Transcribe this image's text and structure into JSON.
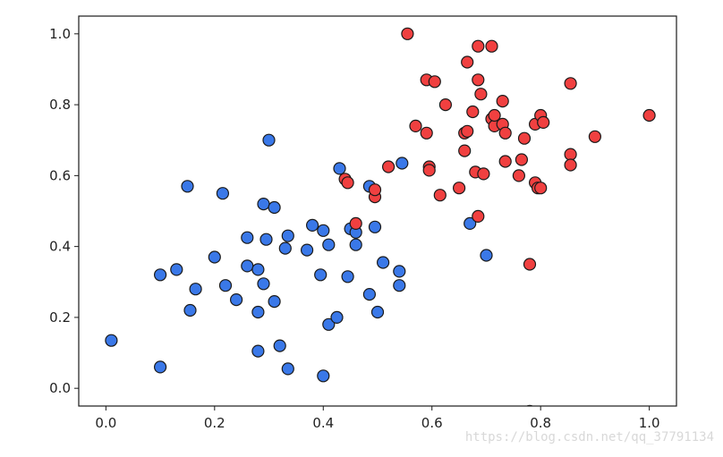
{
  "watermark": "https://blog.csdn.net/qq_37791134",
  "chart_data": {
    "type": "scatter",
    "title": "",
    "xlabel": "",
    "ylabel": "",
    "xlim": [
      -0.05,
      1.05
    ],
    "ylim": [
      -0.05,
      1.05
    ],
    "x_ticks": [
      "0.0",
      "0.2",
      "0.4",
      "0.6",
      "0.8",
      "1.0"
    ],
    "y_ticks": [
      "0.0",
      "0.2",
      "0.4",
      "0.6",
      "0.8",
      "1.0"
    ],
    "grid": false,
    "legend": "none",
    "marker_edge_color": "#1a1a1a",
    "series": [
      {
        "color": "#3a78e8",
        "points": [
          [
            0.01,
            0.135
          ],
          [
            0.1,
            0.06
          ],
          [
            0.1,
            0.32
          ],
          [
            0.13,
            0.335
          ],
          [
            0.15,
            0.57
          ],
          [
            0.155,
            0.22
          ],
          [
            0.165,
            0.28
          ],
          [
            0.2,
            0.37
          ],
          [
            0.215,
            0.55
          ],
          [
            0.22,
            0.29
          ],
          [
            0.24,
            0.25
          ],
          [
            0.26,
            0.425
          ],
          [
            0.26,
            0.345
          ],
          [
            0.28,
            0.335
          ],
          [
            0.28,
            0.215
          ],
          [
            0.28,
            0.105
          ],
          [
            0.29,
            0.52
          ],
          [
            0.29,
            0.295
          ],
          [
            0.295,
            0.42
          ],
          [
            0.3,
            0.7
          ],
          [
            0.31,
            0.245
          ],
          [
            0.31,
            0.51
          ],
          [
            0.32,
            0.12
          ],
          [
            0.33,
            0.395
          ],
          [
            0.335,
            0.43
          ],
          [
            0.335,
            0.055
          ],
          [
            0.37,
            0.39
          ],
          [
            0.38,
            0.46
          ],
          [
            0.395,
            0.32
          ],
          [
            0.4,
            0.445
          ],
          [
            0.4,
            0.035
          ],
          [
            0.41,
            0.18
          ],
          [
            0.41,
            0.405
          ],
          [
            0.425,
            0.2
          ],
          [
            0.43,
            0.62
          ],
          [
            0.445,
            0.315
          ],
          [
            0.45,
            0.45
          ],
          [
            0.46,
            0.44
          ],
          [
            0.46,
            0.405
          ],
          [
            0.485,
            0.57
          ],
          [
            0.485,
            0.265
          ],
          [
            0.495,
            0.455
          ],
          [
            0.5,
            0.215
          ],
          [
            0.51,
            0.355
          ],
          [
            0.54,
            0.33
          ],
          [
            0.54,
            0.29
          ],
          [
            0.545,
            0.635
          ],
          [
            0.67,
            0.465
          ],
          [
            0.7,
            0.375
          ]
        ]
      },
      {
        "color": "#f04040",
        "points": [
          [
            0.44,
            0.59
          ],
          [
            0.445,
            0.58
          ],
          [
            0.46,
            0.465
          ],
          [
            0.495,
            0.54
          ],
          [
            0.495,
            0.56
          ],
          [
            0.52,
            0.625
          ],
          [
            0.555,
            1.0
          ],
          [
            0.57,
            0.74
          ],
          [
            0.59,
            0.72
          ],
          [
            0.59,
            0.87
          ],
          [
            0.595,
            0.625
          ],
          [
            0.595,
            0.615
          ],
          [
            0.605,
            0.865
          ],
          [
            0.615,
            0.545
          ],
          [
            0.625,
            0.8
          ],
          [
            0.65,
            0.565
          ],
          [
            0.66,
            0.67
          ],
          [
            0.66,
            0.72
          ],
          [
            0.665,
            0.92
          ],
          [
            0.665,
            0.725
          ],
          [
            0.675,
            0.78
          ],
          [
            0.68,
            0.61
          ],
          [
            0.685,
            0.485
          ],
          [
            0.685,
            0.965
          ],
          [
            0.685,
            0.87
          ],
          [
            0.69,
            0.83
          ],
          [
            0.695,
            0.605
          ],
          [
            0.71,
            0.965
          ],
          [
            0.71,
            0.76
          ],
          [
            0.715,
            0.74
          ],
          [
            0.715,
            0.77
          ],
          [
            0.73,
            0.81
          ],
          [
            0.73,
            0.745
          ],
          [
            0.735,
            0.64
          ],
          [
            0.735,
            0.72
          ],
          [
            0.76,
            0.6
          ],
          [
            0.765,
            0.645
          ],
          [
            0.77,
            0.705
          ],
          [
            0.78,
            0.35
          ],
          [
            0.79,
            0.58
          ],
          [
            0.79,
            0.745
          ],
          [
            0.795,
            0.565
          ],
          [
            0.8,
            0.565
          ],
          [
            0.8,
            0.77
          ],
          [
            0.805,
            0.75
          ],
          [
            0.855,
            0.86
          ],
          [
            0.855,
            0.66
          ],
          [
            0.855,
            0.63
          ],
          [
            0.9,
            0.71
          ],
          [
            1.0,
            0.77
          ],
          [
            0.78,
            -0.065
          ]
        ]
      }
    ]
  }
}
